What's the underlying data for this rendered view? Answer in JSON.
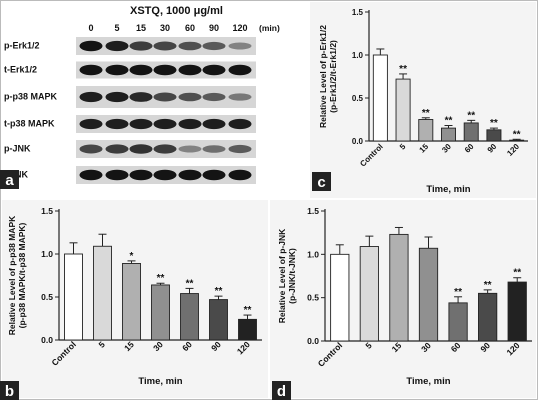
{
  "blot": {
    "title": "XSTQ,  1000 μg/ml",
    "time_labels": [
      "0",
      "5",
      "15",
      "30",
      "60",
      "90",
      "120"
    ],
    "time_unit": "(min)",
    "rows": [
      "p-Erk1/2",
      "t-Erk1/2",
      "p-p38 MAPK",
      "t-p38 MAPK",
      "p-JNK",
      "t-JNK"
    ],
    "intensities": [
      [
        0.95,
        0.9,
        0.75,
        0.7,
        0.65,
        0.6,
        0.4
      ],
      [
        0.95,
        0.95,
        0.95,
        0.95,
        0.95,
        0.95,
        0.95
      ],
      [
        0.9,
        0.9,
        0.85,
        0.7,
        0.65,
        0.6,
        0.45
      ],
      [
        0.9,
        0.9,
        0.9,
        0.9,
        0.9,
        0.9,
        0.9
      ],
      [
        0.7,
        0.75,
        0.8,
        0.75,
        0.4,
        0.5,
        0.6
      ],
      [
        0.95,
        0.95,
        0.95,
        0.95,
        0.95,
        0.95,
        0.95
      ]
    ]
  },
  "panel_letters": [
    "a",
    "b",
    "c",
    "d"
  ],
  "chart_data": [
    {
      "panel": "c",
      "type": "bar",
      "categories": [
        "Control",
        "5",
        "15",
        "30",
        "60",
        "90",
        "120"
      ],
      "values": [
        1.0,
        0.72,
        0.25,
        0.15,
        0.21,
        0.13,
        0.01
      ],
      "errors": [
        0.07,
        0.06,
        0.02,
        0.03,
        0.03,
        0.02,
        0.01
      ],
      "annotations": [
        "",
        "**",
        "**",
        "**",
        "**",
        "**",
        "**"
      ],
      "xlabel": "Time, min",
      "ylabel": [
        "Relative Level of p-Erk1/2",
        "(p-Erk1/2/t-Erk1/2)"
      ],
      "ylim": [
        0,
        1.5
      ],
      "yticks": [
        "0.0",
        "0.5",
        "1.0",
        "1.5"
      ],
      "colors": [
        "#ffffff",
        "#d9d9d9",
        "#b0b0b0",
        "#909090",
        "#707070",
        "#4a4a4a",
        "#222222"
      ]
    },
    {
      "panel": "b",
      "type": "bar",
      "categories": [
        "Control",
        "5",
        "15",
        "30",
        "60",
        "90",
        "120"
      ],
      "values": [
        1.0,
        1.09,
        0.89,
        0.64,
        0.54,
        0.47,
        0.24
      ],
      "errors": [
        0.13,
        0.14,
        0.03,
        0.02,
        0.06,
        0.04,
        0.05
      ],
      "annotations": [
        "",
        "",
        "*",
        "**",
        "**",
        "**",
        "**"
      ],
      "xlabel": "Time, min",
      "ylabel": [
        "Relative Level of p-p38 MAPK",
        "(p-p38 MAPK/t-p38 MAPK)"
      ],
      "ylim": [
        0,
        1.5
      ],
      "yticks": [
        "0.0",
        "0.5",
        "1.0",
        "1.5"
      ],
      "colors": [
        "#ffffff",
        "#d9d9d9",
        "#b0b0b0",
        "#909090",
        "#707070",
        "#4a4a4a",
        "#222222"
      ]
    },
    {
      "panel": "d",
      "type": "bar",
      "categories": [
        "Control",
        "5",
        "15",
        "30",
        "60",
        "90",
        "120"
      ],
      "values": [
        1.0,
        1.09,
        1.23,
        1.07,
        0.44,
        0.55,
        0.68
      ],
      "errors": [
        0.11,
        0.12,
        0.08,
        0.13,
        0.07,
        0.04,
        0.05
      ],
      "annotations": [
        "",
        "",
        "",
        "",
        "**",
        "**",
        "**"
      ],
      "xlabel": "Time, min",
      "ylabel": [
        "Relative Level of p-JNK",
        "(p-JNK/t-JNK)"
      ],
      "ylim": [
        0,
        1.5
      ],
      "yticks": [
        "0.0",
        "0.5",
        "1.0",
        "1.5"
      ],
      "colors": [
        "#ffffff",
        "#d9d9d9",
        "#b0b0b0",
        "#909090",
        "#707070",
        "#4a4a4a",
        "#222222"
      ]
    }
  ]
}
